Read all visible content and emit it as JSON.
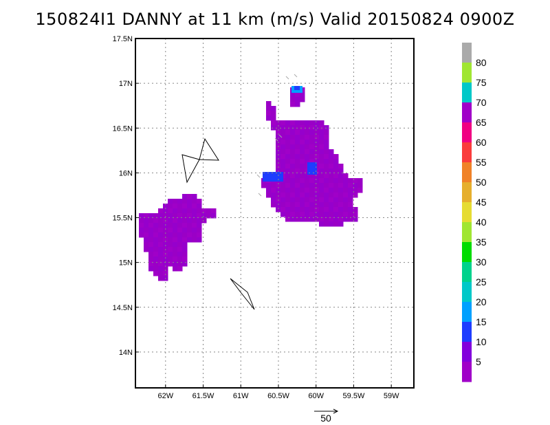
{
  "chart_data": {
    "type": "heatmap",
    "title": "150824I1 DANNY at 11 km (m/s) Valid 20150824 0900Z",
    "xlim": [
      -62.4,
      -58.7
    ],
    "ylim": [
      13.6,
      17.5
    ],
    "x_ticks": [
      -62,
      -61.5,
      -61,
      -60.5,
      -60,
      -59.5,
      -59
    ],
    "x_tick_labels": [
      "62W",
      "61.5W",
      "61W",
      "60.5W",
      "60W",
      "59.5W",
      "59W"
    ],
    "y_ticks": [
      14,
      14.5,
      15,
      15.5,
      16,
      16.5,
      17,
      17.5
    ],
    "y_tick_labels": [
      "14N",
      "14.5N",
      "15N",
      "15.5N",
      "16N",
      "16.5N",
      "17N",
      "17.5N"
    ],
    "grid": "dotted",
    "colorbar": {
      "levels": [
        5,
        10,
        15,
        20,
        25,
        30,
        35,
        40,
        45,
        50,
        55,
        60,
        65,
        70,
        75,
        80
      ],
      "labels": [
        "5",
        "10",
        "15",
        "20",
        "25",
        "30",
        "35",
        "40",
        "45",
        "50",
        "55",
        "60",
        "65",
        "70",
        "75",
        "80"
      ],
      "colors": [
        "#a000c8",
        "#8200dc",
        "#1e3cff",
        "#00a0ff",
        "#00c8c8",
        "#00d28c",
        "#00dc00",
        "#a0e632",
        "#e6dc32",
        "#e6af2d",
        "#f08228",
        "#fa3c3c",
        "#f00082",
        "#a000c8",
        "#00c8c8",
        "#a0e632",
        "#aaaaaa"
      ]
    },
    "wind_field_regions": [
      {
        "name": "east-region",
        "level_ms": 5,
        "lon": [
          -60.7,
          -59.25
        ],
        "lat": [
          15.4,
          16.85
        ],
        "peak_ms": 15
      },
      {
        "name": "east-region-tip",
        "level_ms": 15,
        "lon": [
          -60.25,
          -60.15
        ],
        "lat": [
          16.8,
          17.0
        ]
      },
      {
        "name": "west-region",
        "level_ms": 5,
        "lon": [
          -62.4,
          -61.35
        ],
        "lat": [
          14.8,
          15.75
        ]
      }
    ],
    "reference_vector": {
      "label": "50",
      "units": "m/s"
    },
    "outlines": [
      "island-north",
      "island-south"
    ]
  }
}
